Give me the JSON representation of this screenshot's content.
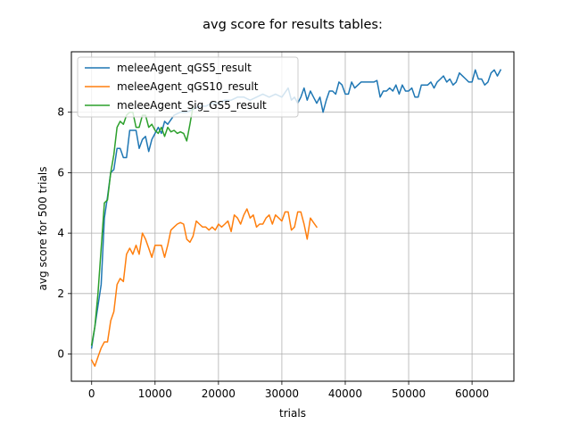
{
  "chart_data": {
    "type": "line",
    "title": "avg score for results tables:",
    "xlabel": "trials",
    "ylabel": "avg score for 500 trials",
    "xlim": [
      -3200,
      66600
    ],
    "ylim": [
      -0.9,
      10.0
    ],
    "xticks": [
      0,
      10000,
      20000,
      30000,
      40000,
      50000,
      60000
    ],
    "xtick_labels": [
      "0",
      "10000",
      "20000",
      "30000",
      "40000",
      "50000",
      "60000"
    ],
    "yticks": [
      0,
      2,
      4,
      6,
      8
    ],
    "ytick_labels": [
      "0",
      "2",
      "4",
      "6",
      "8"
    ],
    "grid": true,
    "legend_position": "top-left",
    "series": [
      {
        "name": "meleeAgent_qGS5_result",
        "color": "#1f77b4",
        "points": [
          [
            0,
            0.2
          ],
          [
            500,
            0.9
          ],
          [
            1500,
            2.3
          ],
          [
            2000,
            4.5
          ],
          [
            2500,
            5.2
          ],
          [
            3000,
            6.0
          ],
          [
            3500,
            6.1
          ],
          [
            4000,
            6.8
          ],
          [
            4500,
            6.8
          ],
          [
            5000,
            6.5
          ],
          [
            5500,
            6.5
          ],
          [
            6000,
            7.4
          ],
          [
            6500,
            7.4
          ],
          [
            7000,
            7.4
          ],
          [
            7500,
            6.8
          ],
          [
            8000,
            7.1
          ],
          [
            8500,
            7.2
          ],
          [
            9000,
            6.7
          ],
          [
            9500,
            7.1
          ],
          [
            10000,
            7.3
          ],
          [
            10500,
            7.5
          ],
          [
            11000,
            7.3
          ],
          [
            11500,
            7.7
          ],
          [
            12000,
            7.6
          ],
          [
            13000,
            7.9
          ],
          [
            14000,
            8.0
          ],
          [
            15000,
            8.0
          ],
          [
            16000,
            8.1
          ],
          [
            17000,
            8.2
          ],
          [
            18000,
            8.2
          ],
          [
            19000,
            8.3
          ],
          [
            20000,
            8.3
          ],
          [
            21000,
            8.4
          ],
          [
            22000,
            8.4
          ],
          [
            23000,
            8.5
          ],
          [
            24000,
            8.5
          ],
          [
            25000,
            8.4
          ],
          [
            26000,
            8.5
          ],
          [
            27000,
            8.6
          ],
          [
            28000,
            8.5
          ],
          [
            29000,
            8.6
          ],
          [
            30000,
            8.5
          ],
          [
            31000,
            8.8
          ],
          [
            31500,
            8.4
          ],
          [
            32000,
            8.5
          ],
          [
            32500,
            8.3
          ],
          [
            33000,
            8.5
          ],
          [
            33500,
            8.8
          ],
          [
            34000,
            8.4
          ],
          [
            34500,
            8.7
          ],
          [
            35000,
            8.5
          ],
          [
            35500,
            8.3
          ],
          [
            36000,
            8.5
          ],
          [
            36500,
            8.0
          ],
          [
            37000,
            8.4
          ],
          [
            37500,
            8.7
          ],
          [
            38000,
            8.7
          ],
          [
            38500,
            8.6
          ],
          [
            39000,
            9.0
          ],
          [
            39500,
            8.9
          ],
          [
            40000,
            8.6
          ],
          [
            40500,
            8.6
          ],
          [
            41000,
            9.0
          ],
          [
            41500,
            8.8
          ],
          [
            42000,
            8.9
          ],
          [
            42500,
            9.0
          ],
          [
            43000,
            9.0
          ],
          [
            44000,
            9.0
          ],
          [
            44500,
            9.0
          ],
          [
            45000,
            9.05
          ],
          [
            45500,
            8.5
          ],
          [
            46000,
            8.7
          ],
          [
            46500,
            8.7
          ],
          [
            47000,
            8.8
          ],
          [
            47500,
            8.7
          ],
          [
            48000,
            8.9
          ],
          [
            48500,
            8.6
          ],
          [
            49000,
            8.9
          ],
          [
            49500,
            8.7
          ],
          [
            50000,
            8.7
          ],
          [
            50500,
            8.8
          ],
          [
            51000,
            8.5
          ],
          [
            51500,
            8.5
          ],
          [
            52000,
            8.9
          ],
          [
            52500,
            8.9
          ],
          [
            53000,
            8.9
          ],
          [
            53500,
            9.0
          ],
          [
            54000,
            8.8
          ],
          [
            54500,
            9.0
          ],
          [
            55000,
            9.1
          ],
          [
            55500,
            9.2
          ],
          [
            56000,
            9.0
          ],
          [
            56500,
            9.1
          ],
          [
            57000,
            8.9
          ],
          [
            57500,
            9.0
          ],
          [
            58000,
            9.3
          ],
          [
            58500,
            9.2
          ],
          [
            59000,
            9.1
          ],
          [
            59500,
            9.0
          ],
          [
            60000,
            9.0
          ],
          [
            60500,
            9.4
          ],
          [
            61000,
            9.1
          ],
          [
            61500,
            9.1
          ],
          [
            62000,
            8.9
          ],
          [
            62500,
            9.0
          ],
          [
            63000,
            9.3
          ],
          [
            63500,
            9.4
          ],
          [
            64000,
            9.2
          ],
          [
            64500,
            9.4
          ]
        ]
      },
      {
        "name": "meleeAgent_qGS10_result",
        "color": "#ff7f0e",
        "points": [
          [
            0,
            -0.2
          ],
          [
            500,
            -0.4
          ],
          [
            1000,
            -0.1
          ],
          [
            1500,
            0.2
          ],
          [
            2000,
            0.4
          ],
          [
            2500,
            0.4
          ],
          [
            3000,
            1.1
          ],
          [
            3500,
            1.4
          ],
          [
            4000,
            2.3
          ],
          [
            4500,
            2.5
          ],
          [
            5000,
            2.4
          ],
          [
            5500,
            3.3
          ],
          [
            6000,
            3.5
          ],
          [
            6500,
            3.3
          ],
          [
            7000,
            3.6
          ],
          [
            7500,
            3.3
          ],
          [
            8000,
            4.0
          ],
          [
            8500,
            3.8
          ],
          [
            9000,
            3.5
          ],
          [
            9500,
            3.2
          ],
          [
            10000,
            3.6
          ],
          [
            10500,
            3.6
          ],
          [
            11000,
            3.6
          ],
          [
            11500,
            3.2
          ],
          [
            12000,
            3.6
          ],
          [
            12500,
            4.1
          ],
          [
            13000,
            4.2
          ],
          [
            13500,
            4.3
          ],
          [
            14000,
            4.35
          ],
          [
            14500,
            4.3
          ],
          [
            15000,
            3.8
          ],
          [
            15500,
            3.7
          ],
          [
            16000,
            3.9
          ],
          [
            16500,
            4.4
          ],
          [
            17000,
            4.3
          ],
          [
            17500,
            4.2
          ],
          [
            18000,
            4.2
          ],
          [
            18500,
            4.1
          ],
          [
            19000,
            4.2
          ],
          [
            19500,
            4.1
          ],
          [
            20000,
            4.3
          ],
          [
            20500,
            4.2
          ],
          [
            21000,
            4.3
          ],
          [
            21500,
            4.4
          ],
          [
            22000,
            4.05
          ],
          [
            22500,
            4.6
          ],
          [
            23000,
            4.5
          ],
          [
            23500,
            4.3
          ],
          [
            24000,
            4.6
          ],
          [
            24500,
            4.8
          ],
          [
            25000,
            4.5
          ],
          [
            25500,
            4.6
          ],
          [
            26000,
            4.2
          ],
          [
            26500,
            4.3
          ],
          [
            27000,
            4.3
          ],
          [
            27500,
            4.5
          ],
          [
            28000,
            4.6
          ],
          [
            28500,
            4.3
          ],
          [
            29000,
            4.6
          ],
          [
            29500,
            4.5
          ],
          [
            30000,
            4.4
          ],
          [
            30500,
            4.7
          ],
          [
            31000,
            4.7
          ],
          [
            31500,
            4.1
          ],
          [
            32000,
            4.2
          ],
          [
            32500,
            4.7
          ],
          [
            33000,
            4.7
          ],
          [
            33500,
            4.3
          ],
          [
            34000,
            3.8
          ],
          [
            34500,
            4.5
          ],
          [
            35000,
            4.35
          ],
          [
            35500,
            4.2
          ]
        ]
      },
      {
        "name": "meleeAgent_Sig_GS5_result",
        "color": "#2ca02c",
        "points": [
          [
            0,
            0.3
          ],
          [
            500,
            0.9
          ],
          [
            1000,
            2.0
          ],
          [
            1500,
            3.5
          ],
          [
            2000,
            5.0
          ],
          [
            2500,
            5.1
          ],
          [
            3000,
            6.0
          ],
          [
            3500,
            6.6
          ],
          [
            4000,
            7.5
          ],
          [
            4500,
            7.7
          ],
          [
            5000,
            7.6
          ],
          [
            5500,
            7.9
          ],
          [
            6000,
            8.0
          ],
          [
            6500,
            8.0
          ],
          [
            7000,
            7.5
          ],
          [
            7500,
            7.5
          ],
          [
            8000,
            7.9
          ],
          [
            8500,
            7.9
          ],
          [
            9000,
            7.5
          ],
          [
            9500,
            7.6
          ],
          [
            10000,
            7.4
          ],
          [
            10500,
            7.3
          ],
          [
            11000,
            7.5
          ],
          [
            11500,
            7.2
          ],
          [
            12000,
            7.5
          ],
          [
            12500,
            7.35
          ],
          [
            13000,
            7.4
          ],
          [
            13500,
            7.3
          ],
          [
            14000,
            7.35
          ],
          [
            14500,
            7.3
          ],
          [
            15000,
            7.05
          ],
          [
            15500,
            7.6
          ],
          [
            16000,
            8.2
          ]
        ]
      }
    ]
  }
}
